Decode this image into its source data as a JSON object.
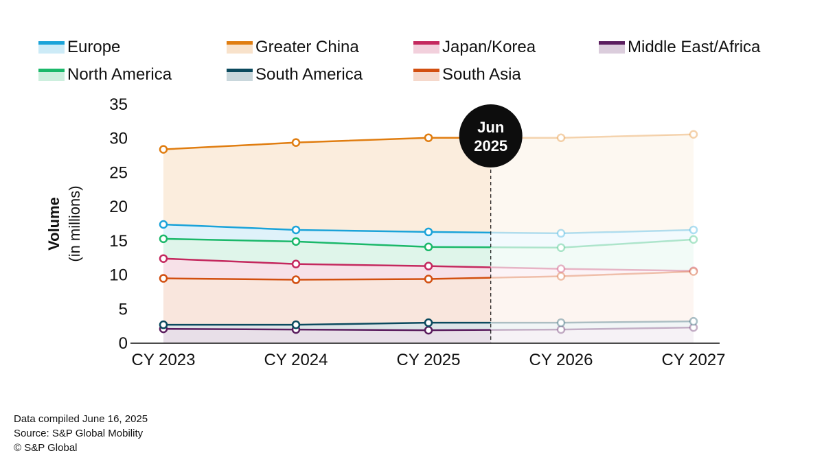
{
  "chart_data": {
    "type": "line",
    "xlabel": "",
    "ylabel": "Volume",
    "ylabel_sub": "(in millions)",
    "categories": [
      "CY 2023",
      "CY 2024",
      "CY 2025",
      "CY 2026",
      "CY 2027"
    ],
    "ylim": [
      0,
      35
    ],
    "yticks": [
      0,
      5,
      10,
      15,
      20,
      25,
      30,
      35
    ],
    "marker": {
      "label_line1": "Jun",
      "label_line2": "2025",
      "x": 2.47
    },
    "series": [
      {
        "name": "Europe",
        "color": "#1aa3d9",
        "values": [
          17.4,
          16.6,
          16.3,
          16.1,
          16.6
        ]
      },
      {
        "name": "Greater China",
        "color": "#e07d10",
        "values": [
          28.4,
          29.4,
          30.1,
          30.1,
          30.6
        ]
      },
      {
        "name": "Japan/Korea",
        "color": "#c4285e",
        "values": [
          12.4,
          11.6,
          11.3,
          10.9,
          10.6
        ]
      },
      {
        "name": "Middle East/Africa",
        "color": "#5a1d5e",
        "values": [
          2.1,
          2.0,
          1.9,
          2.0,
          2.3
        ]
      },
      {
        "name": "North America",
        "color": "#1bb86a",
        "values": [
          15.3,
          14.9,
          14.1,
          14.0,
          15.2
        ]
      },
      {
        "name": "South America",
        "color": "#0b4a5e",
        "values": [
          2.7,
          2.7,
          3.0,
          3.0,
          3.2
        ]
      },
      {
        "name": "South Asia",
        "color": "#d24f10",
        "values": [
          9.5,
          9.3,
          9.4,
          9.8,
          10.5
        ]
      }
    ]
  },
  "footer": {
    "line1": "Data compiled June 16, 2025",
    "line2": "Source: S&P Global Mobility",
    "line3": "© S&P Global"
  }
}
